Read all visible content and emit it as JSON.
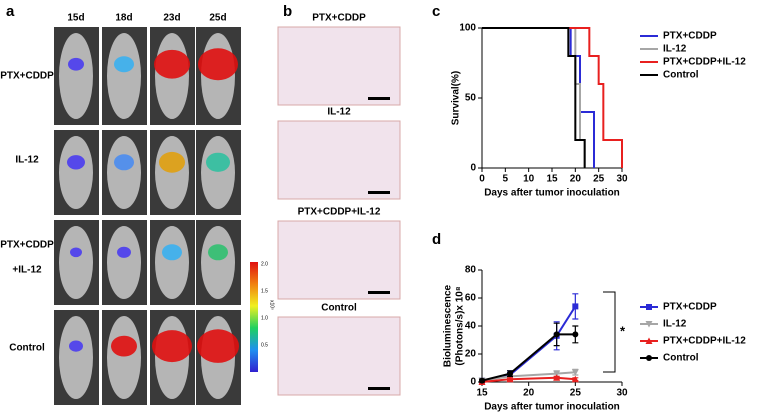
{
  "panels": {
    "a": {
      "label": "a",
      "columns": [
        "15d",
        "18d",
        "23d",
        "25d"
      ],
      "rows": [
        "PTX+CDDP",
        "IL-12",
        "PTX+CDDP",
        "+IL-12",
        "Control"
      ],
      "colorbar": {
        "ticks": [
          "2.0",
          "1.5",
          "1.0",
          "0.5"
        ],
        "unit": "x10⁵"
      }
    },
    "b": {
      "label": "b",
      "titles": [
        "PTX+CDDP",
        "IL-12",
        "PTX+CDDP+IL-12",
        "Control"
      ]
    }
  },
  "chart_data": [
    {
      "type": "line",
      "panel": "c",
      "x_label": "Days after tumor inoculation",
      "y_label": "Survival(%)",
      "xlim": [
        0,
        30
      ],
      "xticks": [
        0,
        5,
        10,
        15,
        20,
        25,
        30
      ],
      "ylim": [
        0,
        100
      ],
      "yticks": [
        0,
        50,
        100
      ],
      "series": [
        {
          "name": "PTX+CDDP",
          "color": "#2b2bd6",
          "x": [
            0,
            19,
            19,
            21,
            21,
            24,
            24
          ],
          "values": [
            100,
            100,
            80,
            80,
            40,
            40,
            0
          ]
        },
        {
          "name": "IL-12",
          "color": "#a6a6a6",
          "x": [
            0,
            20,
            20,
            21,
            21,
            22,
            22
          ],
          "values": [
            100,
            100,
            60,
            60,
            20,
            20,
            0
          ]
        },
        {
          "name": "PTX+CDDP+IL-12",
          "color": "#e8201f",
          "x": [
            0,
            23,
            23,
            25,
            25,
            26,
            26,
            29,
            29,
            30,
            30
          ],
          "values": [
            100,
            100,
            80,
            80,
            60,
            60,
            20,
            20,
            20,
            20,
            0
          ]
        },
        {
          "name": "Control",
          "color": "#000000",
          "x": [
            0,
            18.5,
            18.5,
            20,
            20,
            22,
            22
          ],
          "values": [
            100,
            100,
            80,
            80,
            20,
            20,
            0
          ]
        }
      ]
    },
    {
      "type": "line",
      "panel": "d",
      "x_label": "Days after tumor inoculation",
      "y_label": [
        "Bioluminescence",
        "(Photons/s)x 10⁸"
      ],
      "annotation": "*",
      "xlim": [
        15,
        30
      ],
      "xticks": [
        15,
        20,
        25,
        30
      ],
      "ylim": [
        0,
        80
      ],
      "yticks": [
        0,
        20,
        40,
        60,
        80
      ],
      "series": [
        {
          "name": "PTX+CDDP",
          "color": "#2b2bd6",
          "marker": "square",
          "x": [
            15,
            18,
            23,
            25
          ],
          "values": [
            1,
            5,
            33,
            54
          ],
          "errors": [
            1,
            3,
            10,
            9
          ]
        },
        {
          "name": "IL-12",
          "color": "#a6a6a6",
          "marker": "down",
          "x": [
            15,
            18,
            23,
            25
          ],
          "values": [
            1,
            4,
            6,
            7
          ],
          "errors": [
            0.5,
            1,
            2,
            2
          ]
        },
        {
          "name": "PTX+CDDP+IL-12",
          "color": "#e8201f",
          "marker": "up",
          "x": [
            15,
            18,
            23,
            25
          ],
          "values": [
            0,
            2,
            3,
            2
          ],
          "errors": [
            0.5,
            1,
            1,
            1
          ]
        },
        {
          "name": "Control",
          "color": "#000000",
          "marker": "circle",
          "x": [
            15,
            18,
            23,
            25
          ],
          "values": [
            1,
            6,
            34,
            34
          ],
          "errors": [
            1,
            2,
            8,
            6
          ]
        }
      ]
    }
  ]
}
